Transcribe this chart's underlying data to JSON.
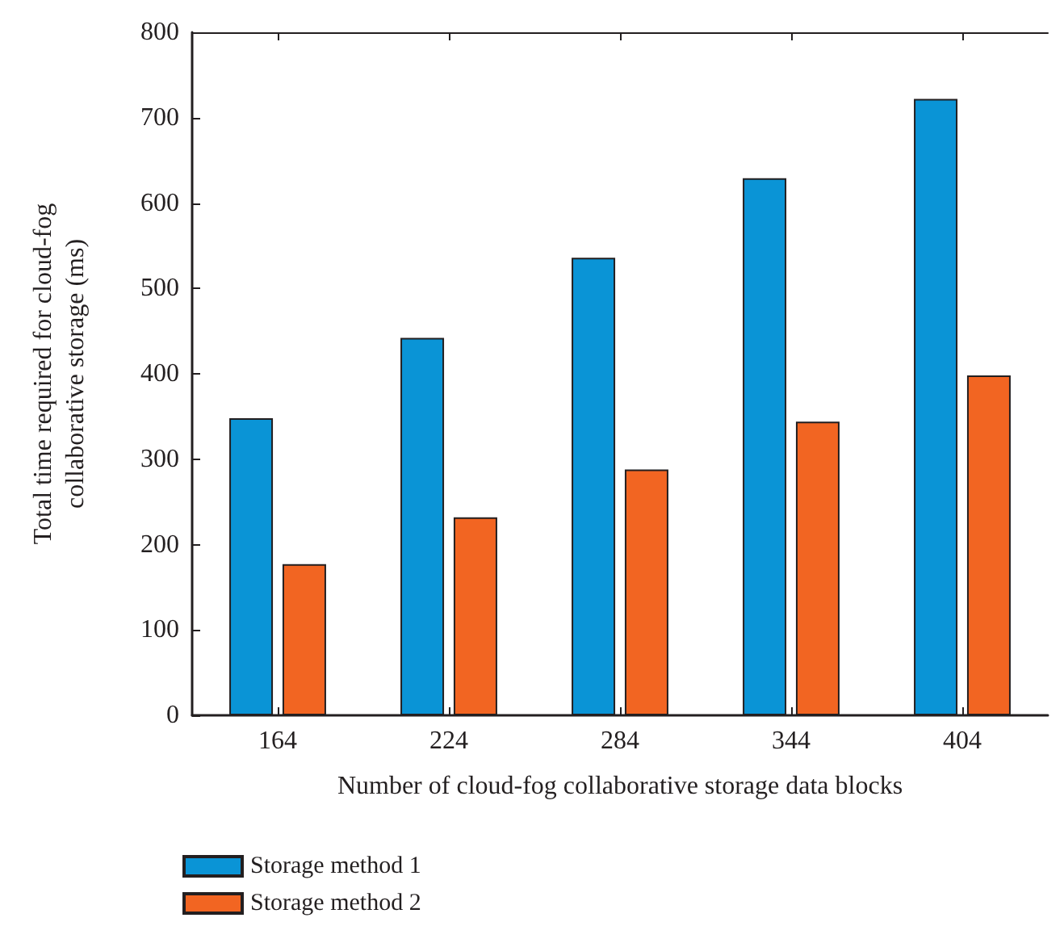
{
  "chart_data": {
    "type": "bar",
    "xlabel": "Number of cloud-fog collaborative storage data blocks",
    "ylabel": "Total time required for cloud-fog\ncollaborative storage (ms)",
    "categories": [
      "164",
      "224",
      "284",
      "344",
      "404"
    ],
    "series": [
      {
        "name": "Storage method 1",
        "color": "#0a94d6",
        "values": [
          348,
          442,
          536,
          629,
          722
        ]
      },
      {
        "name": "Storage method 2",
        "color": "#f26522",
        "values": [
          177,
          232,
          288,
          344,
          398
        ]
      }
    ],
    "ylim": [
      0,
      800
    ],
    "yticks": [
      0,
      100,
      200,
      300,
      400,
      500,
      600,
      700,
      800
    ],
    "grid": false,
    "legend": "bottom left"
  }
}
